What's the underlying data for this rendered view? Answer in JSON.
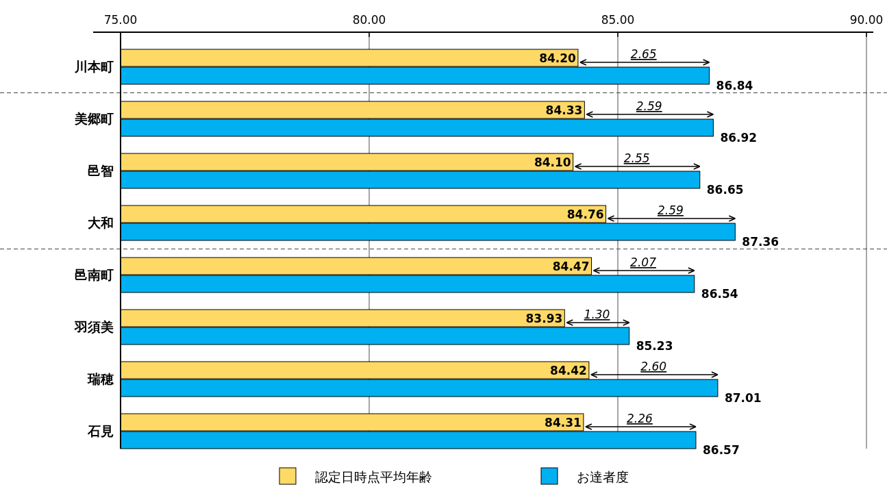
{
  "chart_data": {
    "type": "bar",
    "orientation": "horizontal",
    "categories": [
      "川本町",
      "美郷町",
      "邑智",
      "大和",
      "邑南町",
      "羽須美",
      "瑞穂",
      "石見"
    ],
    "series": [
      {
        "name": "認定日時点平均年齢",
        "color": "#ffd966",
        "values": [
          84.2,
          84.33,
          84.1,
          84.76,
          84.47,
          83.93,
          84.42,
          84.31
        ],
        "value_labels": [
          "84.20",
          "84.33",
          "84.10",
          "84.76",
          "84.47",
          "83.93",
          "84.42",
          "84.31"
        ]
      },
      {
        "name": "お達者度",
        "color": "#00b0f0",
        "values": [
          86.84,
          86.92,
          86.65,
          87.36,
          86.54,
          85.23,
          87.01,
          86.57
        ],
        "value_labels": [
          "86.84",
          "86.92",
          "86.65",
          "87.36",
          "86.54",
          "85.23",
          "87.01",
          "86.57"
        ]
      }
    ],
    "xlim": [
      75,
      90
    ],
    "xticks": [
      {
        "value": 75,
        "label": "75.00"
      },
      {
        "value": 80,
        "label": "80.00"
      },
      {
        "value": 85,
        "label": "85.00"
      },
      {
        "value": 90,
        "label": "90.00"
      }
    ],
    "grid": "x",
    "legend": "bottom",
    "annotations": [
      {
        "text": "2.65",
        "x": 85.52,
        "y": "川本町"
      },
      {
        "text": "2.59",
        "x": 85.63,
        "y": "美郷町"
      },
      {
        "text": "2.55",
        "x": 85.38,
        "y": "邑智"
      },
      {
        "text": "2.59",
        "x": 86.06,
        "y": "大和"
      },
      {
        "text": "2.07",
        "x": 85.51,
        "y": "邑南町"
      },
      {
        "text": "1.30",
        "x": 84.58,
        "y": "羽須美"
      },
      {
        "text": "2.60",
        "x": 85.72,
        "y": "瑞穂"
      },
      {
        "text": "2.26",
        "x": 85.44,
        "y": "石見"
      }
    ]
  }
}
